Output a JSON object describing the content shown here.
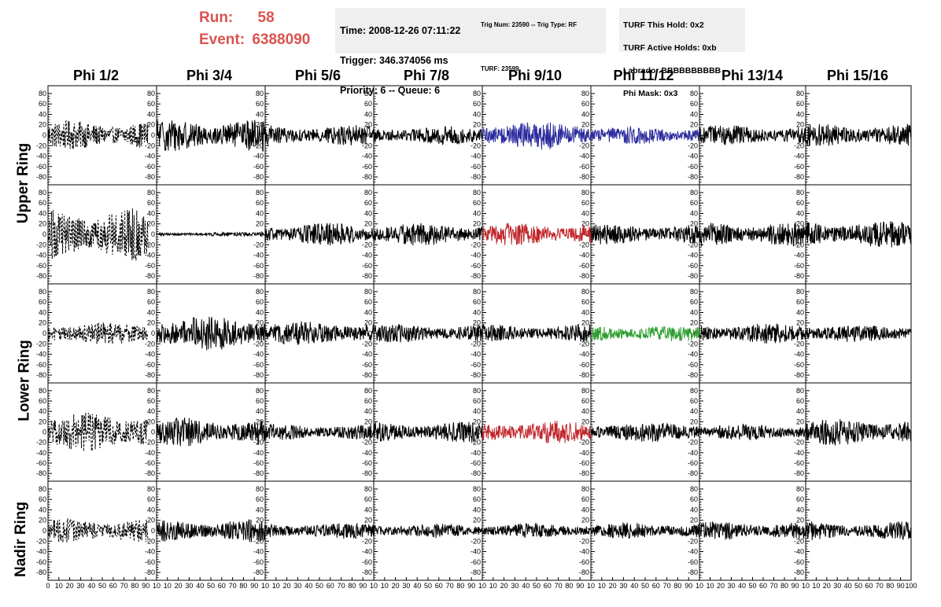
{
  "header": {
    "run_label": "Run:",
    "run_value": "58",
    "event_label": "Event:",
    "event_value": "6388090",
    "time_box": [
      "Time: 2008-12-26 07:11:22",
      "Trigger: 346.374056 ms",
      "Priority: 6 -- Queue: 6"
    ],
    "trig_box": [
      "Trig Num: 23590 -- Trig Type: RF",
      "",
      "TURF: 23599"
    ],
    "turf_box": [
      "TURF This Hold: 0x2",
      "TURF Active Holds: 0xb",
      "Labrador BBBBBBBBBB",
      "Phi Mask: 0x3"
    ]
  },
  "columns": [
    "Phi 1/2",
    "Phi 3/4",
    "Phi 5/6",
    "Phi 7/8",
    "Phi 9/10",
    "Phi 11/12",
    "Phi 13/14",
    "Phi 15/16"
  ],
  "rows": [
    "Upper Ring",
    "Lower Ring",
    "Nadir Ring"
  ],
  "colors": {
    "run_text": "#d9534f",
    "box_bg": "#efefef",
    "blue": "#2b2b9e",
    "red": "#c0262b",
    "green": "#2e9e2e",
    "black": "#000000"
  },
  "chart_data": {
    "type": "line",
    "title": "",
    "xlabel": "",
    "ylabel": "",
    "ylim": [
      -95,
      95
    ],
    "xlim": [
      0,
      100
    ],
    "y_ticks": [
      80,
      60,
      40,
      20,
      0,
      -20,
      -40,
      -60,
      -80
    ],
    "y_tick_labels": [
      "80",
      "60",
      "40",
      "20",
      "0",
      "-20",
      "-40",
      "-60",
      "-80"
    ],
    "x_ticks": [
      0,
      10,
      20,
      30,
      40,
      50,
      60,
      70,
      80,
      90,
      100
    ],
    "x_tick_labels_first": [
      "0",
      "10",
      "20",
      "30",
      "40",
      "50",
      "60",
      "70",
      "80",
      "90",
      "10"
    ],
    "x_tick_labels": [
      "10",
      "20",
      "30",
      "40",
      "50",
      "60",
      "70",
      "80",
      "90",
      "10"
    ],
    "x_tick_labels_last": [
      "10",
      "20",
      "30",
      "40",
      "50",
      "60",
      "70",
      "80",
      "90",
      "100"
    ],
    "grid": false,
    "trace_extent_col0": 92,
    "trace_extent": 100,
    "panels": [
      {
        "row": 0,
        "col": 0,
        "amp": 28,
        "color": "#000000",
        "dashed": true
      },
      {
        "row": 0,
        "col": 1,
        "amp": 32,
        "color": "#000000",
        "dashed": false
      },
      {
        "row": 0,
        "col": 2,
        "amp": 20,
        "color": "#000000",
        "dashed": false
      },
      {
        "row": 0,
        "col": 3,
        "amp": 18,
        "color": "#000000",
        "dashed": false
      },
      {
        "row": 0,
        "col": 4,
        "amp": 28,
        "color": "#2b2b9e",
        "dashed": false
      },
      {
        "row": 0,
        "col": 5,
        "amp": 18,
        "color": "#2b2b9e",
        "dashed": false
      },
      {
        "row": 0,
        "col": 6,
        "amp": 20,
        "color": "#000000",
        "dashed": false
      },
      {
        "row": 0,
        "col": 7,
        "amp": 22,
        "color": "#000000",
        "dashed": false
      },
      {
        "row": 1,
        "col": 0,
        "amp": 50,
        "color": "#000000",
        "dashed": true
      },
      {
        "row": 1,
        "col": 1,
        "amp": 4,
        "color": "#000000",
        "dashed": false
      },
      {
        "row": 1,
        "col": 2,
        "amp": 22,
        "color": "#000000",
        "dashed": false
      },
      {
        "row": 1,
        "col": 3,
        "amp": 22,
        "color": "#000000",
        "dashed": false
      },
      {
        "row": 1,
        "col": 4,
        "amp": 22,
        "color": "#c0262b",
        "dashed": false
      },
      {
        "row": 1,
        "col": 5,
        "amp": 20,
        "color": "#000000",
        "dashed": false
      },
      {
        "row": 1,
        "col": 6,
        "amp": 24,
        "color": "#000000",
        "dashed": false
      },
      {
        "row": 1,
        "col": 7,
        "amp": 26,
        "color": "#000000",
        "dashed": false
      },
      {
        "row": 2,
        "col": 0,
        "amp": 22,
        "color": "#000000",
        "dashed": true
      },
      {
        "row": 2,
        "col": 1,
        "amp": 34,
        "color": "#000000",
        "dashed": false
      },
      {
        "row": 2,
        "col": 2,
        "amp": 24,
        "color": "#000000",
        "dashed": false
      },
      {
        "row": 2,
        "col": 3,
        "amp": 18,
        "color": "#000000",
        "dashed": false
      },
      {
        "row": 2,
        "col": 4,
        "amp": 18,
        "color": "#000000",
        "dashed": false
      },
      {
        "row": 2,
        "col": 5,
        "amp": 16,
        "color": "#2e9e2e",
        "dashed": false
      },
      {
        "row": 2,
        "col": 6,
        "amp": 20,
        "color": "#000000",
        "dashed": false
      },
      {
        "row": 2,
        "col": 7,
        "amp": 18,
        "color": "#000000",
        "dashed": false
      },
      {
        "row": 3,
        "col": 0,
        "amp": 38,
        "color": "#000000",
        "dashed": true
      },
      {
        "row": 3,
        "col": 1,
        "amp": 28,
        "color": "#000000",
        "dashed": false
      },
      {
        "row": 3,
        "col": 2,
        "amp": 16,
        "color": "#000000",
        "dashed": false
      },
      {
        "row": 3,
        "col": 3,
        "amp": 20,
        "color": "#000000",
        "dashed": false
      },
      {
        "row": 3,
        "col": 4,
        "amp": 22,
        "color": "#c0262b",
        "dashed": false
      },
      {
        "row": 3,
        "col": 5,
        "amp": 20,
        "color": "#000000",
        "dashed": false
      },
      {
        "row": 3,
        "col": 6,
        "amp": 16,
        "color": "#000000",
        "dashed": false
      },
      {
        "row": 3,
        "col": 7,
        "amp": 26,
        "color": "#000000",
        "dashed": false
      },
      {
        "row": 4,
        "col": 0,
        "amp": 24,
        "color": "#000000",
        "dashed": true
      },
      {
        "row": 4,
        "col": 1,
        "amp": 22,
        "color": "#000000",
        "dashed": false
      },
      {
        "row": 4,
        "col": 2,
        "amp": 16,
        "color": "#000000",
        "dashed": false
      },
      {
        "row": 4,
        "col": 3,
        "amp": 14,
        "color": "#000000",
        "dashed": false
      },
      {
        "row": 4,
        "col": 4,
        "amp": 14,
        "color": "#000000",
        "dashed": false
      },
      {
        "row": 4,
        "col": 5,
        "amp": 16,
        "color": "#000000",
        "dashed": false
      },
      {
        "row": 4,
        "col": 6,
        "amp": 18,
        "color": "#000000",
        "dashed": false
      },
      {
        "row": 4,
        "col": 7,
        "amp": 18,
        "color": "#000000",
        "dashed": false
      }
    ]
  }
}
